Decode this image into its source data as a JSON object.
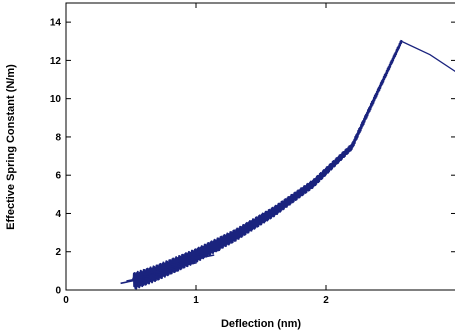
{
  "chart_data": {
    "type": "line",
    "xlabel": "Deflection (nm)",
    "ylabel": "Effective Spring Constant (N/m)",
    "xlim": [
      0,
      3
    ],
    "ylim": [
      0,
      15
    ],
    "x_ticks": [
      0,
      1,
      2
    ],
    "y_ticks": [
      0,
      2,
      4,
      6,
      8,
      10,
      12,
      14
    ],
    "grid": false,
    "line_color": "#1a237e",
    "series": [
      {
        "values": [
          {
            "x": 0.52,
            "y": 0.45
          },
          {
            "x": 0.7,
            "y": 0.9
          },
          {
            "x": 1.0,
            "y": 1.8
          },
          {
            "x": 1.3,
            "y": 2.85
          },
          {
            "x": 1.6,
            "y": 4.1
          },
          {
            "x": 1.9,
            "y": 5.55
          },
          {
            "x": 2.2,
            "y": 7.5
          },
          {
            "x": 2.58,
            "y": 13.0
          },
          {
            "x": 2.8,
            "y": 12.3
          },
          {
            "x": 3.0,
            "y": 11.4
          }
        ]
      }
    ]
  }
}
